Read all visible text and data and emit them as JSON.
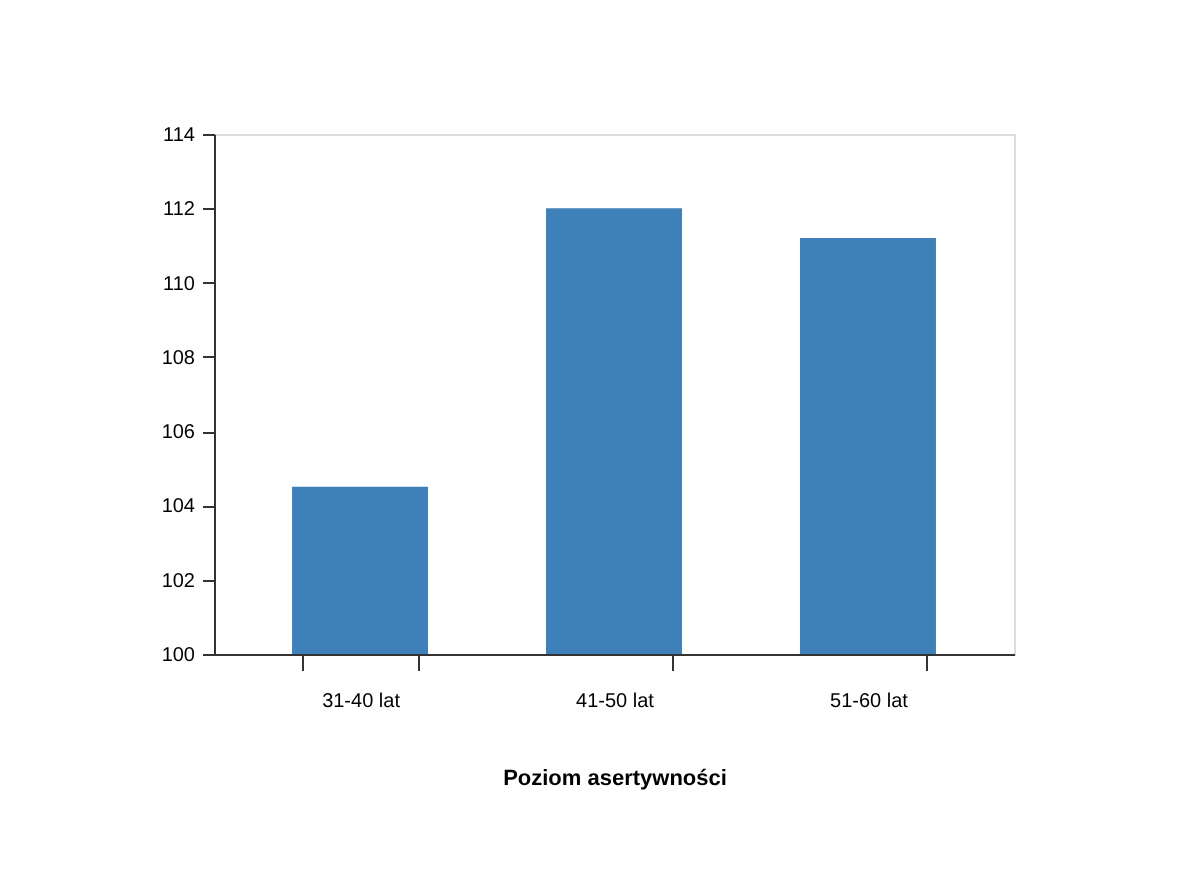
{
  "chart_data": {
    "type": "bar",
    "xlabel": "Poziom asertywności",
    "categories": [
      "31-40 lat",
      "41-50 lat",
      "51-60 lat"
    ],
    "values": [
      104.5,
      112.0,
      111.2
    ],
    "color": "#3e81b9",
    "ylim": [
      100,
      114
    ],
    "yticks": [
      100,
      102,
      104,
      106,
      108,
      110,
      112,
      114
    ],
    "grid": false
  }
}
